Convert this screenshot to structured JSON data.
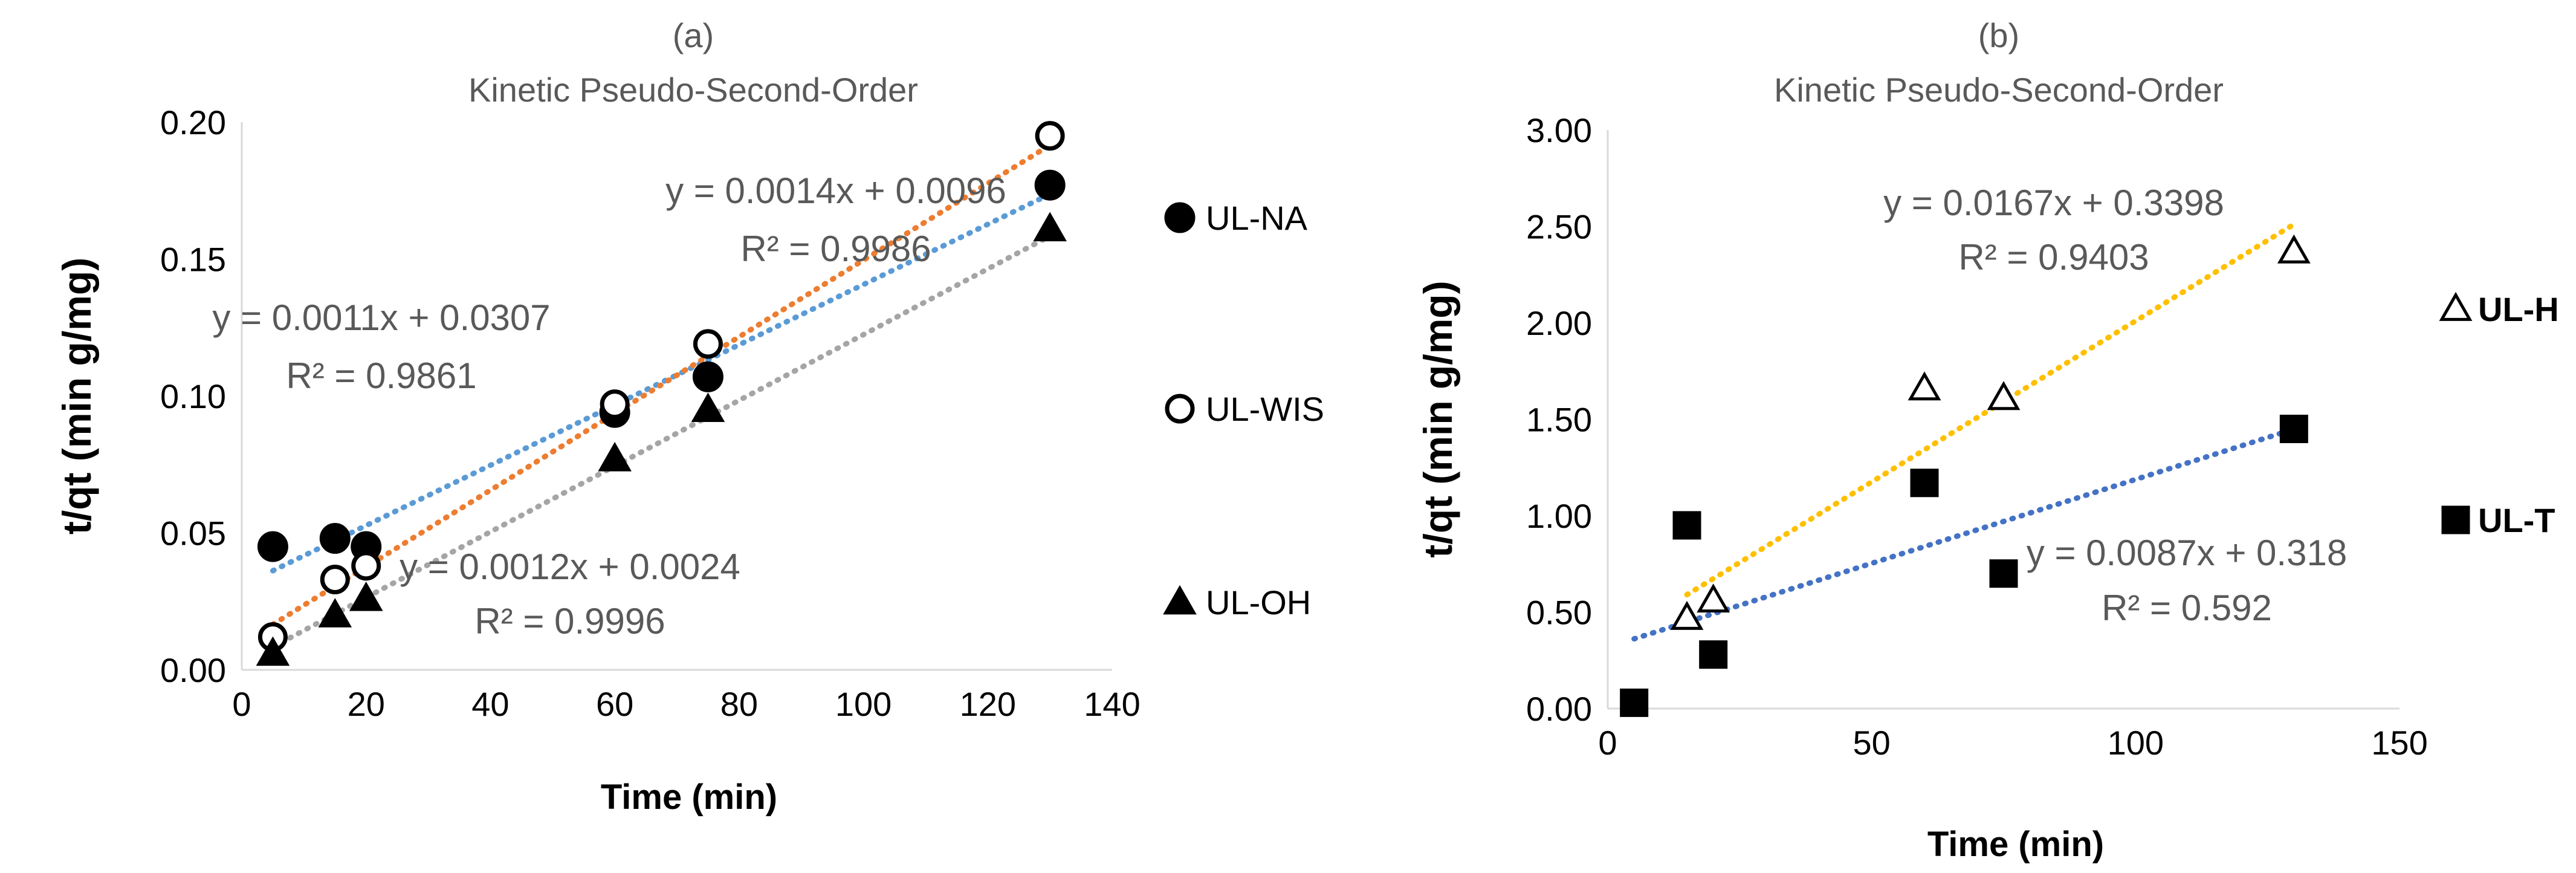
{
  "chart_data": [
    {
      "type": "scatter",
      "panel_label": "(a)",
      "title": "Kinetic Pseudo-Second-Order",
      "xlabel": "Time (min)",
      "ylabel": "t/qt  (min g/mg)",
      "xlim": [
        0,
        140
      ],
      "ylim": [
        0,
        0.2
      ],
      "x_ticks": [
        "0",
        "20",
        "40",
        "60",
        "80",
        "100",
        "120",
        "140"
      ],
      "y_ticks": [
        "0.00",
        "0.05",
        "0.10",
        "0.15",
        "0.20"
      ],
      "series": [
        {
          "name": "UL-NA",
          "marker": "filled-circle",
          "trendline_color": "#5B9BD5",
          "points": [
            [
              5,
              0.045
            ],
            [
              15,
              0.048
            ],
            [
              20,
              0.045
            ],
            [
              60,
              0.094
            ],
            [
              75,
              0.107
            ],
            [
              130,
              0.177
            ]
          ],
          "equation": "y = 0.0011x + 0.0307",
          "r2": "R² = 0.9861",
          "slope": 0.0011,
          "intercept": 0.0307
        },
        {
          "name": "UL-WIS",
          "marker": "open-circle",
          "trendline_color": "#ED7D31",
          "points": [
            [
              5,
              0.012
            ],
            [
              15,
              0.033
            ],
            [
              20,
              0.038
            ],
            [
              60,
              0.097
            ],
            [
              75,
              0.119
            ],
            [
              130,
              0.195
            ]
          ],
          "equation": "y = 0.0014x + 0.0096",
          "r2": "R² = 0.9986",
          "slope": 0.0014,
          "intercept": 0.0096
        },
        {
          "name": "UL-OH",
          "marker": "filled-triangle",
          "trendline_color": "#A5A5A5",
          "points": [
            [
              5,
              0.006
            ],
            [
              15,
              0.02
            ],
            [
              20,
              0.026
            ],
            [
              60,
              0.077
            ],
            [
              75,
              0.095
            ],
            [
              130,
              0.161
            ]
          ],
          "equation": "y = 0.0012x + 0.0024",
          "r2": "R² = 0.9996",
          "slope": 0.0012,
          "intercept": 0.0024
        }
      ]
    },
    {
      "type": "scatter",
      "panel_label": "(b)",
      "title": "Kinetic Pseudo-Second-Order",
      "xlabel": "Time (min)",
      "ylabel": "t/qt  (min g/mg)",
      "xlim": [
        0,
        150
      ],
      "ylim": [
        0,
        3
      ],
      "x_ticks": [
        "0",
        "50",
        "100",
        "150"
      ],
      "y_ticks": [
        "0.00",
        "0.50",
        "1.00",
        "1.50",
        "2.00",
        "2.50",
        "3.00"
      ],
      "series": [
        {
          "name": "UL-H",
          "marker": "open-triangle",
          "trendline_color": "#FFC000",
          "points": [
            [
              15,
              0.47
            ],
            [
              20,
              0.56
            ],
            [
              60,
              1.66
            ],
            [
              75,
              1.61
            ],
            [
              130,
              2.37
            ]
          ],
          "equation": "y = 0.0167x + 0.3398",
          "r2": "R² = 0.9403",
          "slope": 0.0167,
          "intercept": 0.3398
        },
        {
          "name": "UL-T",
          "marker": "filled-square",
          "trendline_color": "#4472C4",
          "points": [
            [
              5,
              0.03
            ],
            [
              15,
              0.95
            ],
            [
              20,
              0.28
            ],
            [
              60,
              1.17
            ],
            [
              75,
              0.7
            ],
            [
              130,
              1.45
            ]
          ],
          "equation": "y = 0.0087x + 0.318",
          "r2": "R² = 0.592",
          "slope": 0.0087,
          "intercept": 0.318
        }
      ]
    }
  ]
}
